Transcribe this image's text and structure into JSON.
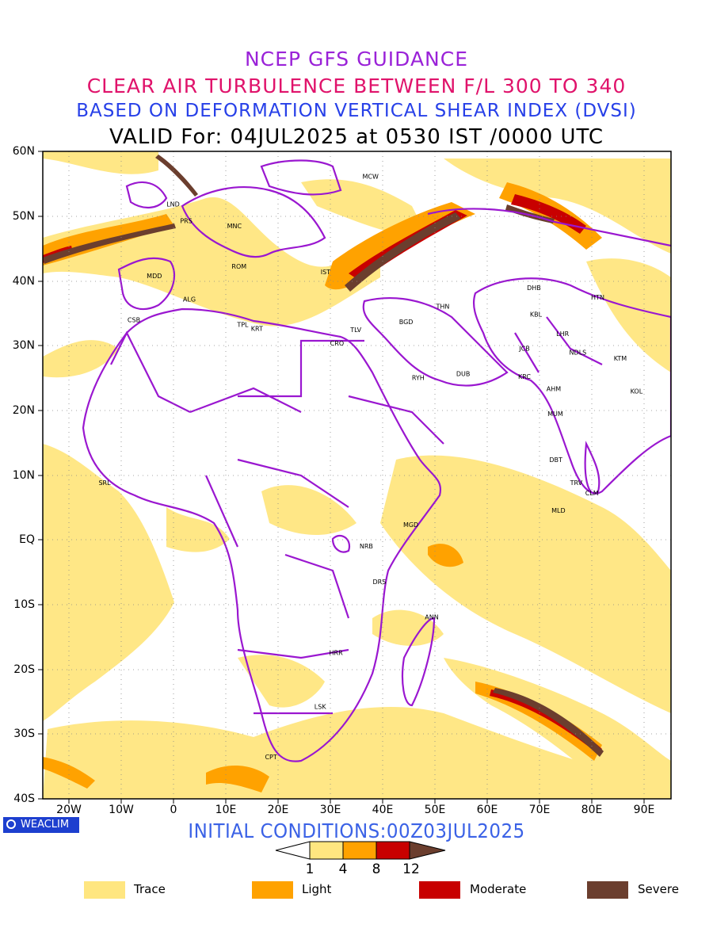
{
  "titles": {
    "line1": "NCEP GFS GUIDANCE",
    "line2": "CLEAR AIR TURBULENCE BETWEEN F/L 300 TO 340",
    "line3": "BASED ON DEFORMATION VERTICAL SHEAR INDEX (DVSI)",
    "line4": "VALID For: 04JUL2025 at 0530 IST /0000 UTC"
  },
  "axes": {
    "lat_labels": [
      "60N",
      "50N",
      "40N",
      "30N",
      "20N",
      "10N",
      "EQ",
      "10S",
      "20S",
      "30S",
      "40S"
    ],
    "lon_labels": [
      "20W",
      "10W",
      "0",
      "10E",
      "20E",
      "30E",
      "40E",
      "50E",
      "60E",
      "70E",
      "80E",
      "90E"
    ]
  },
  "cities": [
    {
      "code": "MCW",
      "lon": 37.6,
      "lat": 55.8
    },
    {
      "code": "LND",
      "lon": -0.1,
      "lat": 51.5
    },
    {
      "code": "PRS",
      "lon": 2.4,
      "lat": 48.9
    },
    {
      "code": "MNC",
      "lon": 11.6,
      "lat": 48.1
    },
    {
      "code": "ROM",
      "lon": 12.5,
      "lat": 41.9
    },
    {
      "code": "MDD",
      "lon": -3.7,
      "lat": 40.4
    },
    {
      "code": "IST",
      "lon": 29.0,
      "lat": 41.0
    },
    {
      "code": "ALG",
      "lon": 3.0,
      "lat": 36.8
    },
    {
      "code": "CSB",
      "lon": -7.6,
      "lat": 33.6
    },
    {
      "code": "TPL",
      "lon": 13.2,
      "lat": 32.9
    },
    {
      "code": "KRT",
      "lon": 15.9,
      "lat": 32.3
    },
    {
      "code": "CRO",
      "lon": 31.2,
      "lat": 30.0
    },
    {
      "code": "TLV",
      "lon": 34.8,
      "lat": 32.1
    },
    {
      "code": "BGD",
      "lon": 44.4,
      "lat": 33.3
    },
    {
      "code": "THN",
      "lon": 51.4,
      "lat": 35.7
    },
    {
      "code": "RYH",
      "lon": 46.7,
      "lat": 24.7
    },
    {
      "code": "DUB",
      "lon": 55.3,
      "lat": 25.3
    },
    {
      "code": "DHB",
      "lon": 68.8,
      "lat": 38.6
    },
    {
      "code": "KBL",
      "lon": 69.2,
      "lat": 34.5
    },
    {
      "code": "HTN",
      "lon": 81.0,
      "lat": 37.1
    },
    {
      "code": "LHR",
      "lon": 74.3,
      "lat": 31.5
    },
    {
      "code": "NDLS",
      "lon": 77.2,
      "lat": 28.6
    },
    {
      "code": "JCB",
      "lon": 67.0,
      "lat": 29.2
    },
    {
      "code": "KRC",
      "lon": 67.0,
      "lat": 24.9
    },
    {
      "code": "AHM",
      "lon": 72.6,
      "lat": 23.0
    },
    {
      "code": "KTM",
      "lon": 85.3,
      "lat": 27.7
    },
    {
      "code": "KOL",
      "lon": 88.4,
      "lat": 22.6
    },
    {
      "code": "MUM",
      "lon": 72.9,
      "lat": 19.1
    },
    {
      "code": "DBT",
      "lon": 73.0,
      "lat": 12.0
    },
    {
      "code": "TRV",
      "lon": 76.9,
      "lat": 8.5
    },
    {
      "code": "CLM",
      "lon": 79.9,
      "lat": 6.9
    },
    {
      "code": "MLD",
      "lon": 73.5,
      "lat": 4.2
    },
    {
      "code": "SRL",
      "lon": -13.2,
      "lat": 8.5
    },
    {
      "code": "MGD",
      "lon": 45.3,
      "lat": 2.0
    },
    {
      "code": "NRB",
      "lon": 36.8,
      "lat": -1.3
    },
    {
      "code": "DRS",
      "lon": 39.3,
      "lat": -6.8
    },
    {
      "code": "ANN",
      "lon": 49.3,
      "lat": -12.3
    },
    {
      "code": "HRR",
      "lon": 31.0,
      "lat": -17.8
    },
    {
      "code": "LSK",
      "lon": 28.0,
      "lat": -26.1
    },
    {
      "code": "CPT",
      "lon": 18.6,
      "lat": -33.9
    }
  ],
  "footer": {
    "logo": "WEACLIM",
    "initial_conditions": "INITIAL CONDITIONS:00Z03JUL2025"
  },
  "colorbar": {
    "ticks": [
      "1",
      "4",
      "8",
      "12"
    ],
    "colors": [
      "#ffe680",
      "#ffa200",
      "#c80000",
      "#6b3e2e"
    ]
  },
  "legend": [
    {
      "label": "Trace",
      "color": "#ffe680"
    },
    {
      "label": "Light",
      "color": "#ffa200"
    },
    {
      "label": "Moderate",
      "color": "#c80000"
    },
    {
      "label": "Severe",
      "color": "#6b3e2e"
    }
  ]
}
